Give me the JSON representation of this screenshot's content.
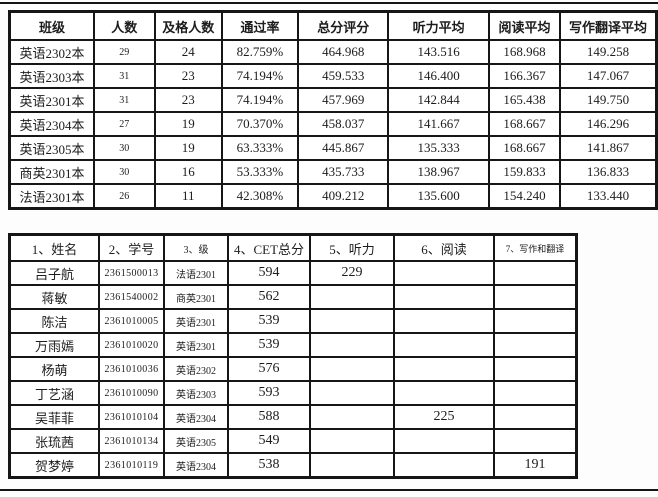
{
  "page": {
    "background": "#fdfdfd",
    "table_background": "#ffffff",
    "border_color": "#161616",
    "text_color": "#1c1c1c"
  },
  "summary_table": {
    "headers": [
      "班级",
      "人数",
      "及格人数",
      "通过率",
      "总分评分",
      "听力平均",
      "阅读平均",
      "写作翻译平均"
    ],
    "rows": [
      [
        "英语2302本",
        "29",
        "24",
        "82.759%",
        "464.968",
        "143.516",
        "168.968",
        "149.258"
      ],
      [
        "英语2303本",
        "31",
        "23",
        "74.194%",
        "459.533",
        "146.400",
        "166.367",
        "147.067"
      ],
      [
        "英语2301本",
        "31",
        "23",
        "74.194%",
        "457.969",
        "142.844",
        "165.438",
        "149.750"
      ],
      [
        "英语2304本",
        "27",
        "19",
        "70.370%",
        "458.037",
        "141.667",
        "168.667",
        "146.296"
      ],
      [
        "英语2305本",
        "30",
        "19",
        "63.333%",
        "445.867",
        "135.333",
        "168.667",
        "141.867"
      ],
      [
        "商英2301本",
        "30",
        "16",
        "53.333%",
        "435.733",
        "138.967",
        "159.833",
        "136.833"
      ],
      [
        "法语2301本",
        "26",
        "11",
        "42.308%",
        "409.212",
        "135.600",
        "154.240",
        "133.440"
      ]
    ]
  },
  "student_table": {
    "headers": [
      "1、姓名",
      "2、学号",
      "3、级",
      "4、CET总分",
      "5、听力",
      "6、阅读",
      "7、写作和翻译"
    ],
    "rows": [
      [
        "吕子航",
        "2361500013",
        "法语2301",
        "594",
        "229",
        "",
        ""
      ],
      [
        "蒋敏",
        "2361540002",
        "商英2301",
        "562",
        "",
        "",
        ""
      ],
      [
        "陈洁",
        "2361010005",
        "英语2301",
        "539",
        "",
        "",
        ""
      ],
      [
        "万雨嫣",
        "2361010020",
        "英语2301",
        "539",
        "",
        "",
        ""
      ],
      [
        "杨萌",
        "2361010036",
        "英语2302",
        "576",
        "",
        "",
        ""
      ],
      [
        "丁艺涵",
        "2361010090",
        "英语2303",
        "593",
        "",
        "",
        ""
      ],
      [
        "吴菲菲",
        "2361010104",
        "英语2304",
        "588",
        "",
        "225",
        ""
      ],
      [
        "张琉茜",
        "2361010134",
        "英语2305",
        "549",
        "",
        "",
        ""
      ],
      [
        "贺梦婷",
        "2361010119",
        "英语2304",
        "538",
        "",
        "",
        "191"
      ]
    ]
  }
}
